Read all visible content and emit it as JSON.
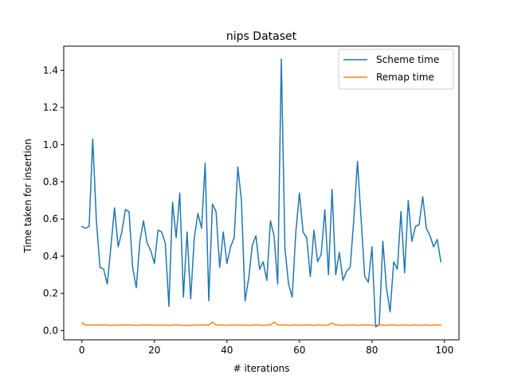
{
  "chart_data": {
    "type": "line",
    "title": "nips Dataset",
    "xlabel": "# iterations",
    "ylabel": "Time taken for insertion",
    "xlim": [
      -5,
      104
    ],
    "ylim": [
      -0.05,
      1.53
    ],
    "xticks": [
      0,
      20,
      40,
      60,
      80,
      100
    ],
    "yticks": [
      0.0,
      0.2,
      0.4,
      0.6,
      0.8,
      1.0,
      1.2,
      1.4
    ],
    "grid": false,
    "legend_position": "top-right",
    "series": [
      {
        "name": "Scheme time",
        "color": "#1f77b4",
        "x": [
          0,
          1,
          2,
          3,
          4,
          5,
          6,
          7,
          8,
          9,
          10,
          11,
          12,
          13,
          14,
          15,
          16,
          17,
          18,
          19,
          20,
          21,
          22,
          23,
          24,
          25,
          26,
          27,
          28,
          29,
          30,
          31,
          32,
          33,
          34,
          35,
          36,
          37,
          38,
          39,
          40,
          41,
          42,
          43,
          44,
          45,
          46,
          47,
          48,
          49,
          50,
          51,
          52,
          53,
          54,
          55,
          56,
          57,
          58,
          59,
          60,
          61,
          62,
          63,
          64,
          65,
          66,
          67,
          68,
          69,
          70,
          71,
          72,
          73,
          74,
          75,
          76,
          77,
          78,
          79,
          80,
          81,
          82,
          83,
          84,
          85,
          86,
          87,
          88,
          89,
          90,
          91,
          92,
          93,
          94,
          95,
          96,
          97,
          98,
          99
        ],
        "values": [
          0.56,
          0.55,
          0.56,
          1.03,
          0.59,
          0.34,
          0.33,
          0.25,
          0.45,
          0.66,
          0.45,
          0.53,
          0.65,
          0.64,
          0.34,
          0.23,
          0.48,
          0.59,
          0.47,
          0.43,
          0.36,
          0.54,
          0.53,
          0.47,
          0.13,
          0.69,
          0.5,
          0.74,
          0.18,
          0.53,
          0.17,
          0.5,
          0.63,
          0.55,
          0.9,
          0.16,
          0.68,
          0.64,
          0.34,
          0.53,
          0.36,
          0.45,
          0.5,
          0.88,
          0.7,
          0.16,
          0.28,
          0.46,
          0.51,
          0.33,
          0.37,
          0.27,
          0.59,
          0.51,
          0.25,
          1.46,
          0.44,
          0.25,
          0.18,
          0.53,
          0.74,
          0.53,
          0.5,
          0.29,
          0.54,
          0.37,
          0.41,
          0.65,
          0.3,
          0.76,
          0.3,
          0.42,
          0.27,
          0.32,
          0.34,
          0.6,
          0.91,
          0.6,
          0.29,
          0.26,
          0.45,
          0.02,
          0.03,
          0.48,
          0.23,
          0.1,
          0.37,
          0.33,
          0.64,
          0.31,
          0.7,
          0.48,
          0.56,
          0.57,
          0.72,
          0.55,
          0.51,
          0.45,
          0.49,
          0.37
        ]
      },
      {
        "name": "Remap time",
        "color": "#ff7f0e",
        "x": [
          0,
          1,
          2,
          3,
          4,
          5,
          6,
          7,
          8,
          9,
          10,
          11,
          12,
          13,
          14,
          15,
          16,
          17,
          18,
          19,
          20,
          21,
          22,
          23,
          24,
          25,
          26,
          27,
          28,
          29,
          30,
          31,
          32,
          33,
          34,
          35,
          36,
          37,
          38,
          39,
          40,
          41,
          42,
          43,
          44,
          45,
          46,
          47,
          48,
          49,
          50,
          51,
          52,
          53,
          54,
          55,
          56,
          57,
          58,
          59,
          60,
          61,
          62,
          63,
          64,
          65,
          66,
          67,
          68,
          69,
          70,
          71,
          72,
          73,
          74,
          75,
          76,
          77,
          78,
          79,
          80,
          81,
          82,
          83,
          84,
          85,
          86,
          87,
          88,
          89,
          90,
          91,
          92,
          93,
          94,
          95,
          96,
          97,
          98,
          99
        ],
        "values": [
          0.04,
          0.03,
          0.03,
          0.03,
          0.03,
          0.03,
          0.03,
          0.03,
          0.028,
          0.03,
          0.028,
          0.03,
          0.03,
          0.03,
          0.03,
          0.028,
          0.03,
          0.03,
          0.03,
          0.03,
          0.028,
          0.03,
          0.028,
          0.03,
          0.028,
          0.03,
          0.03,
          0.03,
          0.028,
          0.028,
          0.028,
          0.03,
          0.03,
          0.03,
          0.03,
          0.03,
          0.045,
          0.03,
          0.03,
          0.03,
          0.028,
          0.03,
          0.03,
          0.03,
          0.028,
          0.03,
          0.028,
          0.03,
          0.03,
          0.03,
          0.028,
          0.03,
          0.03,
          0.045,
          0.03,
          0.03,
          0.03,
          0.028,
          0.03,
          0.03,
          0.028,
          0.03,
          0.03,
          0.03,
          0.028,
          0.03,
          0.03,
          0.028,
          0.03,
          0.04,
          0.03,
          0.03,
          0.028,
          0.03,
          0.03,
          0.03,
          0.028,
          0.03,
          0.03,
          0.03,
          0.028,
          0.03,
          0.03,
          0.03,
          0.028,
          0.03,
          0.03,
          0.028,
          0.03,
          0.03,
          0.028,
          0.03,
          0.03,
          0.028,
          0.03,
          0.03,
          0.028,
          0.03,
          0.03,
          0.028
        ]
      }
    ]
  }
}
